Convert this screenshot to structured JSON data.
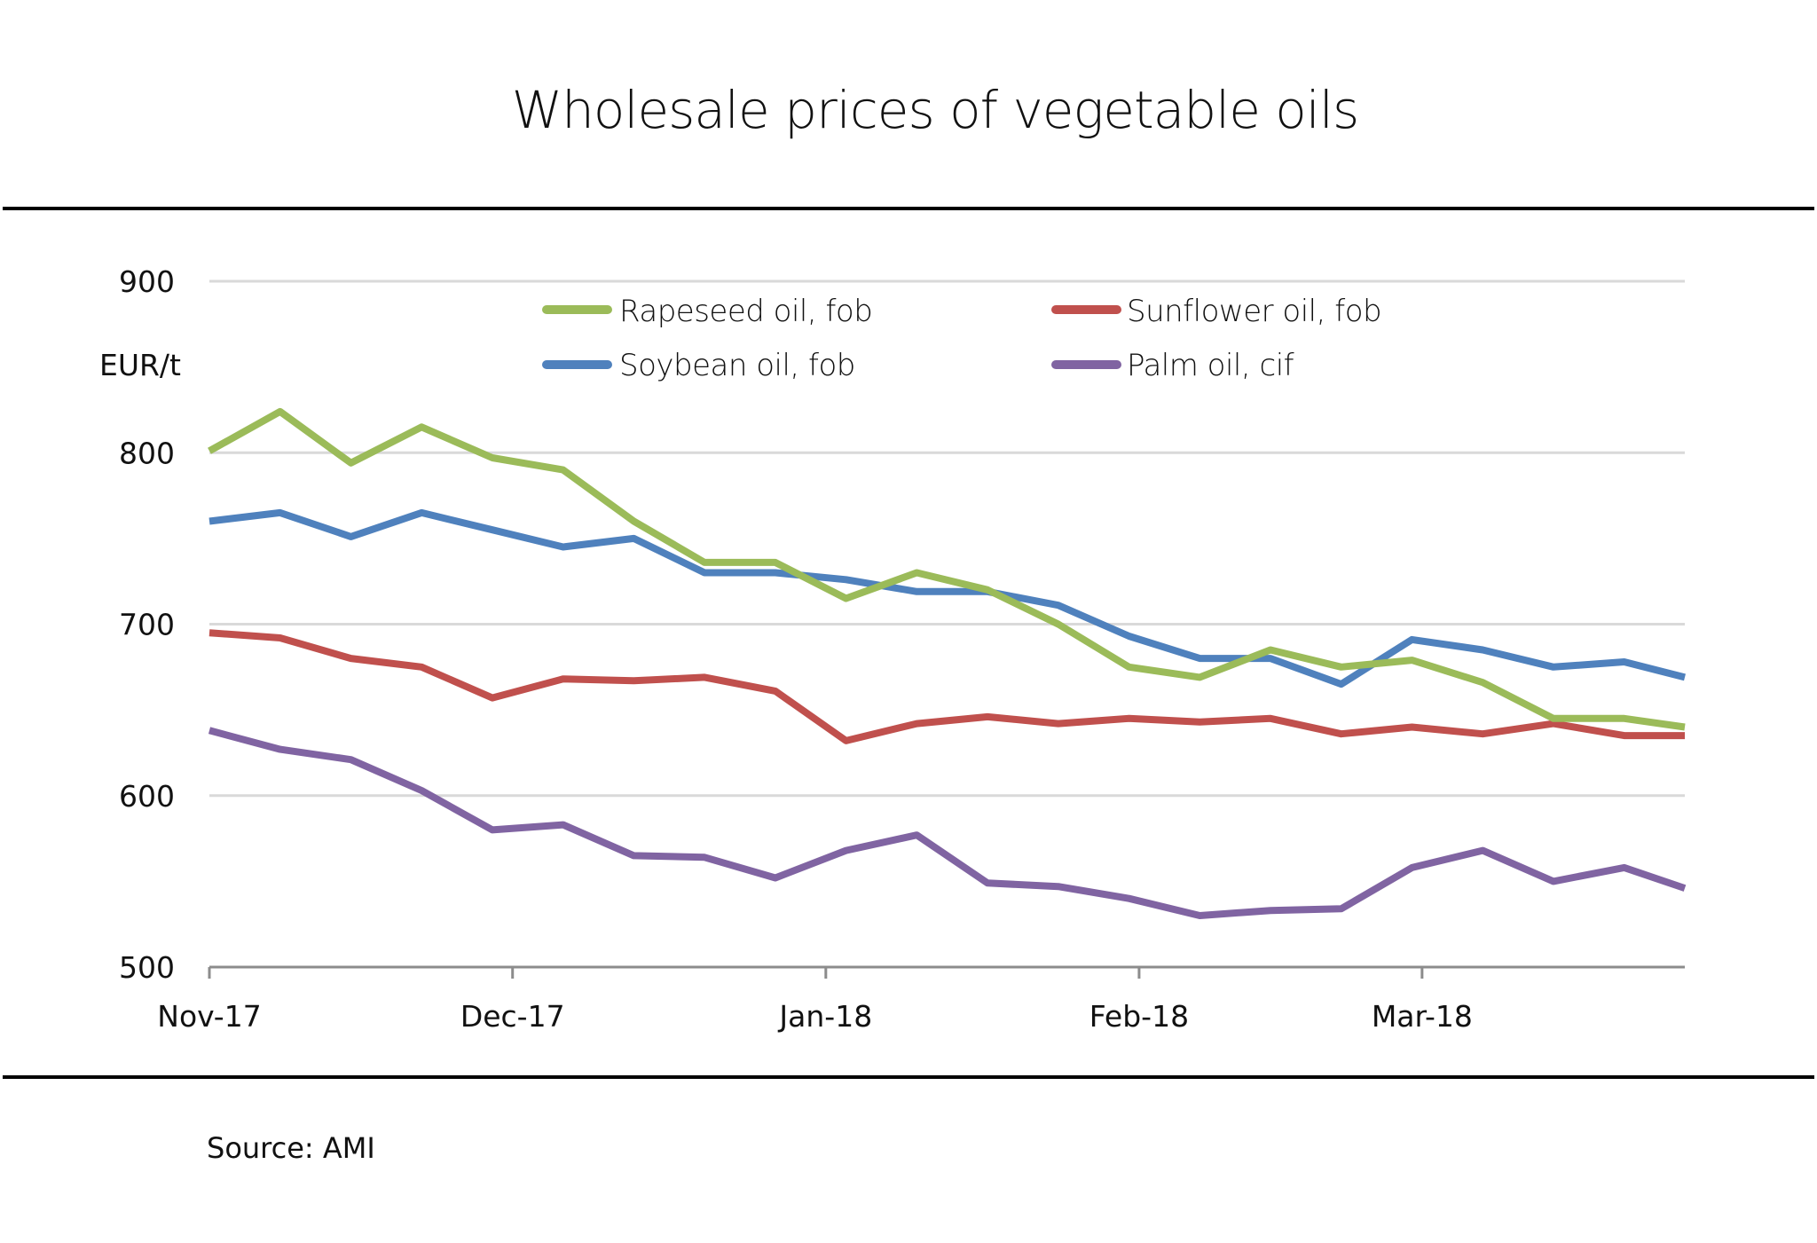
{
  "chart_data": {
    "type": "line",
    "title": "Wholesale prices of vegetable oils",
    "ylabel": "EUR/t",
    "xlabel": "",
    "ylim": [
      500,
      900
    ],
    "yticks": [
      500,
      600,
      700,
      800,
      900
    ],
    "ytick_labels": [
      "500",
      "600",
      "700",
      "800",
      "900"
    ],
    "grid": true,
    "x_type": "date",
    "x_range": [
      "2017-11-01",
      "2018-03-27"
    ],
    "xticks": [
      {
        "date": "2017-11-01",
        "label": "Nov-17"
      },
      {
        "date": "2017-12-01",
        "label": "Dec-17"
      },
      {
        "date": "2018-01-01",
        "label": "Jan-18"
      },
      {
        "date": "2018-02-01",
        "label": "Feb-18"
      },
      {
        "date": "2018-03-01",
        "label": "Mar-18"
      }
    ],
    "x": [
      "2017-11-01",
      "2017-11-08",
      "2017-11-15",
      "2017-11-22",
      "2017-11-29",
      "2017-12-06",
      "2017-12-13",
      "2017-12-20",
      "2017-12-27",
      "2018-01-03",
      "2018-01-10",
      "2018-01-17",
      "2018-01-24",
      "2018-01-31",
      "2018-02-07",
      "2018-02-14",
      "2018-02-21",
      "2018-02-28",
      "2018-03-07",
      "2018-03-14",
      "2018-03-21",
      "2018-03-27"
    ],
    "legend_position": "top",
    "series": [
      {
        "name": "Rapeseed oil, fob",
        "color": "#9BBB59",
        "values": [
          801,
          824,
          794,
          815,
          797,
          790,
          760,
          736,
          736,
          715,
          730,
          720,
          700,
          675,
          669,
          685,
          675,
          679,
          666,
          645,
          645,
          640
        ]
      },
      {
        "name": "Sunflower oil, fob",
        "color": "#C0504D",
        "values": [
          695,
          692,
          680,
          675,
          657,
          668,
          667,
          669,
          661,
          632,
          642,
          646,
          642,
          645,
          643,
          645,
          636,
          640,
          636,
          642,
          635,
          635
        ]
      },
      {
        "name": "Soybean oil, fob",
        "color": "#4F81BD",
        "values": [
          760,
          765,
          751,
          765,
          755,
          745,
          750,
          730,
          730,
          726,
          719,
          719,
          711,
          693,
          680,
          680,
          665,
          691,
          685,
          675,
          678,
          669
        ]
      },
      {
        "name": "Palm oil, cif",
        "color": "#8064A2",
        "values": [
          638,
          627,
          621,
          603,
          580,
          583,
          565,
          564,
          552,
          568,
          577,
          549,
          547,
          540,
          530,
          533,
          534,
          558,
          568,
          550,
          558,
          546
        ]
      }
    ],
    "source": "Source: AMI"
  }
}
